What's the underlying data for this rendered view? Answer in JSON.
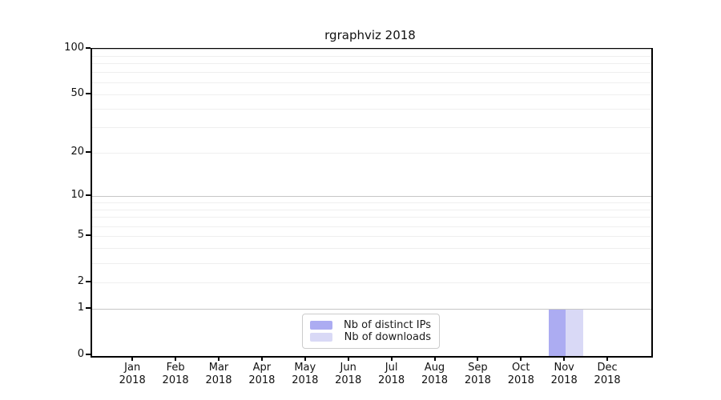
{
  "chart_data": {
    "type": "bar",
    "title": "rgraphviz 2018",
    "months": [
      "Jan",
      "Feb",
      "Mar",
      "Apr",
      "May",
      "Jun",
      "Jul",
      "Aug",
      "Sep",
      "Oct",
      "Nov",
      "Dec"
    ],
    "year_label": "2018",
    "series": [
      {
        "name": "Nb of distinct IPs",
        "color": "#acacf2",
        "values": [
          0,
          0,
          0,
          0,
          0,
          0,
          0,
          0,
          0,
          0,
          1,
          0
        ]
      },
      {
        "name": "Nb of downloads",
        "color": "#d9d9f6",
        "values": [
          0,
          0,
          0,
          0,
          0,
          0,
          0,
          0,
          0,
          0,
          1,
          0
        ]
      }
    ],
    "xlabel": "",
    "ylabel": "",
    "y_scale": "log1p",
    "ylim": [
      0,
      100
    ],
    "y_tick_labels": [
      0,
      1,
      2,
      5,
      10,
      20,
      50,
      100
    ],
    "gridlines": {
      "major": [
        1,
        10,
        100
      ],
      "minor": [
        2,
        3,
        4,
        5,
        6,
        7,
        8,
        9,
        20,
        30,
        40,
        50,
        60,
        70,
        80,
        90
      ]
    },
    "grid": true,
    "legend_position": "lower center",
    "colors": {
      "major_grid": "#c6c6c6",
      "minor_grid": "#efefef",
      "axis": "#000000",
      "text": "#111111",
      "background": "#ffffff"
    }
  }
}
